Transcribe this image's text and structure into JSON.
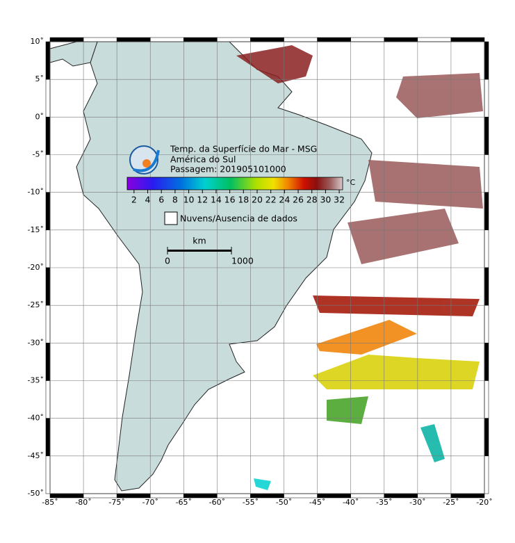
{
  "chart_data": {
    "type": "map",
    "title": "Temp. da Superfície do Mar - MSG",
    "subtitle": "América do Sul",
    "caption": "Passagem: 201905101000",
    "xlim": [
      -85,
      -20
    ],
    "ylim": [
      -50,
      10
    ],
    "grid": true,
    "xticks": [
      {
        "value": -85,
        "label": "-85˚"
      },
      {
        "value": -80,
        "label": "-80˚"
      },
      {
        "value": -75,
        "label": "-75˚"
      },
      {
        "value": -70,
        "label": "-70˚"
      },
      {
        "value": -65,
        "label": "-65˚"
      },
      {
        "value": -60,
        "label": "-60˚"
      },
      {
        "value": -55,
        "label": "-55˚"
      },
      {
        "value": -50,
        "label": "-50˚"
      },
      {
        "value": -45,
        "label": "-45˚"
      },
      {
        "value": -40,
        "label": "-40˚"
      },
      {
        "value": -35,
        "label": "-35˚"
      },
      {
        "value": -30,
        "label": "-30˚"
      },
      {
        "value": -25,
        "label": "-25˚"
      },
      {
        "value": -20,
        "label": "-20˚"
      }
    ],
    "yticks": [
      {
        "value": 10,
        "label": "10˚"
      },
      {
        "value": 5,
        "label": "5˚"
      },
      {
        "value": 0,
        "label": "0˚"
      },
      {
        "value": -5,
        "label": "-5˚"
      },
      {
        "value": -10,
        "label": "-10˚"
      },
      {
        "value": -15,
        "label": "-15˚"
      },
      {
        "value": -20,
        "label": "-20˚"
      },
      {
        "value": -25,
        "label": "-25˚"
      },
      {
        "value": -30,
        "label": "-30˚"
      },
      {
        "value": -35,
        "label": "-35˚"
      },
      {
        "value": -40,
        "label": "-40˚"
      },
      {
        "value": -45,
        "label": "-45˚"
      },
      {
        "value": -50,
        "label": "-50˚"
      }
    ],
    "colorbar": {
      "lim": [
        1,
        32.5
      ],
      "ticks": [
        2,
        4,
        6,
        8,
        10,
        12,
        14,
        16,
        18,
        20,
        22,
        24,
        26,
        28,
        30,
        32
      ],
      "unit": "°C"
    },
    "legend": "Nuvens/Ausencia de dados",
    "scale": {
      "unit": "km",
      "ticks": [
        0,
        1000
      ]
    }
  }
}
